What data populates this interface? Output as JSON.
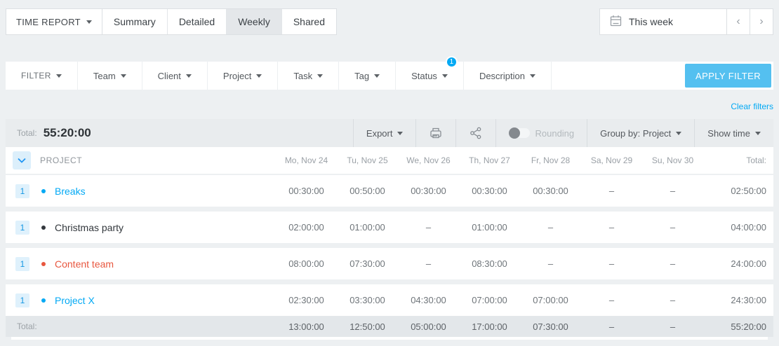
{
  "topbar": {
    "report_switcher": {
      "label": "TIME REPORT"
    },
    "tabs": [
      {
        "label": "Summary"
      },
      {
        "label": "Detailed"
      },
      {
        "label": "Weekly"
      },
      {
        "label": "Shared"
      }
    ],
    "active_tab": "Weekly",
    "date_picker": {
      "label": "This week",
      "prev": "‹",
      "next": "›"
    }
  },
  "filter_bar": {
    "filter_label": "FILTER",
    "filters": [
      {
        "label": "Team"
      },
      {
        "label": "Client"
      },
      {
        "label": "Project"
      },
      {
        "label": "Task"
      },
      {
        "label": "Tag"
      },
      {
        "label": "Status",
        "badge": "1"
      },
      {
        "label": "Description"
      }
    ],
    "apply_button": "APPLY FILTER",
    "clear_filters": "Clear filters"
  },
  "summary_bar": {
    "total_label": "Total:",
    "total_value": "55:20:00",
    "export_label": "Export",
    "rounding_label": "Rounding",
    "rounding_on": false,
    "group_by_label": "Group by: Project",
    "show_time_label": "Show time"
  },
  "table": {
    "group_column_header": "PROJECT",
    "columns": [
      "Mo, Nov 24",
      "Tu, Nov 25",
      "We, Nov 26",
      "Th, Nov 27",
      "Fr, Nov 28",
      "Sa, Nov 29",
      "Su, Nov 30",
      "Total:"
    ],
    "rows": [
      {
        "count": "1",
        "name": "Breaks",
        "color": "#03a9f4",
        "values": [
          "00:30:00",
          "00:50:00",
          "00:30:00",
          "00:30:00",
          "00:30:00",
          "–",
          "–",
          "02:50:00"
        ]
      },
      {
        "count": "1",
        "name": "Christmas party",
        "color": "#33383d",
        "values": [
          "02:00:00",
          "01:00:00",
          "–",
          "01:00:00",
          "–",
          "–",
          "–",
          "04:00:00"
        ]
      },
      {
        "count": "1",
        "name": "Content team",
        "color": "#e8573f",
        "values": [
          "08:00:00",
          "07:30:00",
          "–",
          "08:30:00",
          "–",
          "–",
          "–",
          "24:00:00"
        ]
      },
      {
        "count": "1",
        "name": "Project X",
        "color": "#03a9f4",
        "values": [
          "02:30:00",
          "03:30:00",
          "04:30:00",
          "07:00:00",
          "07:00:00",
          "–",
          "–",
          "24:30:00"
        ]
      }
    ],
    "footer": {
      "label": "Total:",
      "values": [
        "13:00:00",
        "12:50:00",
        "05:00:00",
        "17:00:00",
        "07:30:00",
        "–",
        "–",
        "55:20:00"
      ]
    }
  },
  "colors": {
    "accent": "#03a9f4",
    "apply_button": "#54c0f0",
    "active_tab_bg": "#e4e7ea",
    "summary_bar_bg": "#e9ecee",
    "footer_bg": "#e3e7ea",
    "page_bg": "#edf0f2"
  }
}
